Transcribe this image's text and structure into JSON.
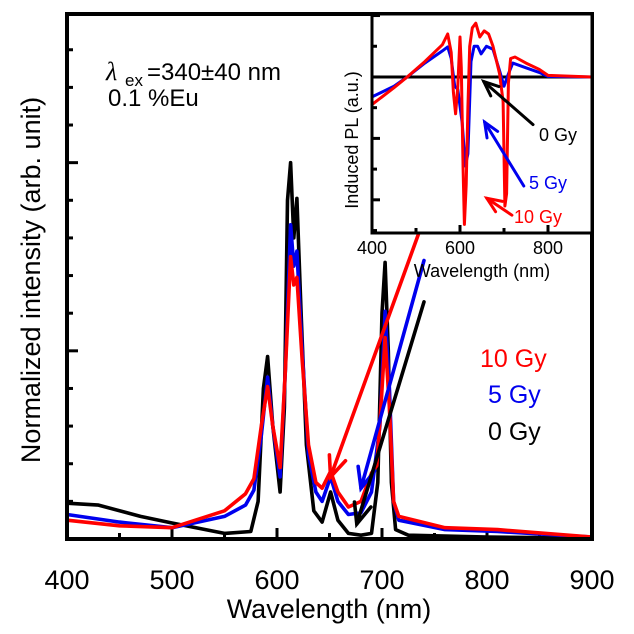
{
  "chart_data": [
    {
      "id": "main",
      "type": "line",
      "title": "",
      "xlabel": "Wavelength (nm)",
      "ylabel": "Normalized intensity (arb. unit)",
      "xlim": [
        400,
        900
      ],
      "ylim": [
        0,
        2.79
      ],
      "xticks": [
        400,
        500,
        600,
        700,
        800,
        900
      ],
      "xtick_labels": [
        "400",
        "500",
        "600",
        "700",
        "800",
        "900"
      ],
      "x_minor_step": 50,
      "y_major_step": 1,
      "y_minor_step": 0.2,
      "y_tick_labels_shown": false,
      "grid": false,
      "annotations": {
        "line1_symbol": "λ",
        "line1_sub": "ex",
        "line1_rest": "=340±40 nm",
        "line2": "0.1 %Eu"
      },
      "series": [
        {
          "name": "0 Gy",
          "label": "0 Gy",
          "color": "#000000",
          "x": [
            400,
            430,
            470,
            500,
            550,
            575,
            582,
            587,
            591,
            596,
            603,
            607,
            610,
            613,
            616,
            619,
            623,
            628,
            635,
            643,
            651,
            658,
            668,
            680,
            690,
            696,
            700,
            703,
            706,
            709,
            713,
            725,
            800,
            900
          ],
          "y": [
            0.19,
            0.18,
            0.12,
            0.085,
            0.03,
            0.04,
            0.2,
            0.8,
            0.97,
            0.6,
            0.25,
            0.7,
            1.8,
            2.0,
            1.6,
            1.81,
            1.2,
            0.5,
            0.15,
            0.09,
            0.25,
            0.1,
            0.03,
            0.02,
            0.03,
            0.3,
            1.2,
            1.47,
            1.0,
            0.3,
            0.05,
            0.02,
            0.01,
            0.005
          ]
        },
        {
          "name": "5 Gy",
          "label": "5 Gy",
          "color": "#0000ee",
          "x": [
            400,
            450,
            500,
            550,
            570,
            578,
            585,
            591,
            596,
            603,
            608,
            613,
            616,
            619,
            624,
            630,
            637,
            643,
            651,
            658,
            668,
            680,
            690,
            698,
            703,
            707,
            711,
            716,
            760,
            810,
            900
          ],
          "y": [
            0.13,
            0.09,
            0.06,
            0.12,
            0.18,
            0.26,
            0.55,
            0.86,
            0.6,
            0.33,
            0.9,
            1.67,
            1.45,
            1.53,
            1.0,
            0.45,
            0.25,
            0.2,
            0.33,
            0.2,
            0.13,
            0.14,
            0.25,
            0.6,
            1.21,
            0.8,
            0.2,
            0.1,
            0.05,
            0.04,
            0.01
          ]
        },
        {
          "name": "10 Gy",
          "label": "10 Gy",
          "color": "#ff0000",
          "x": [
            400,
            450,
            500,
            550,
            570,
            578,
            585,
            591,
            596,
            603,
            608,
            613,
            616,
            619,
            624,
            630,
            637,
            643,
            651,
            658,
            668,
            680,
            690,
            695,
            699,
            703,
            707,
            711,
            716,
            760,
            810,
            900
          ],
          "y": [
            0.1,
            0.07,
            0.06,
            0.15,
            0.24,
            0.32,
            0.6,
            0.81,
            0.6,
            0.38,
            0.9,
            1.5,
            1.35,
            1.39,
            0.95,
            0.5,
            0.3,
            0.27,
            0.36,
            0.25,
            0.17,
            0.2,
            0.35,
            0.39,
            0.7,
            1.07,
            0.7,
            0.2,
            0.12,
            0.06,
            0.05,
            0.01
          ]
        }
      ],
      "arrows": [
        {
          "series": "10 Gy",
          "from": [
            736,
            1.64
          ],
          "to": [
            651,
            0.33
          ]
        },
        {
          "series": "5 Gy",
          "from": [
            740,
            1.48
          ],
          "to": [
            680,
            0.27
          ]
        },
        {
          "series": "0 Gy",
          "from": [
            740,
            1.26
          ],
          "to": [
            676,
            0.08
          ]
        }
      ]
    },
    {
      "id": "inset",
      "type": "line",
      "title": "",
      "xlabel": "Wavelength (nm)",
      "ylabel": "Induced PL (a.u.)",
      "xlim": [
        400,
        900
      ],
      "ylim": [
        -5.08,
        2.05
      ],
      "xticks": [
        400,
        600,
        800
      ],
      "xtick_labels": [
        "400",
        "600",
        "800"
      ],
      "x_minor_step": 100,
      "y_major_step": 2,
      "y_minor_step": 1,
      "y_tick_labels_shown": false,
      "grid": false,
      "series": [
        {
          "name": "0 Gy",
          "label": "0 Gy",
          "color": "#000000",
          "x": [
            400,
            900
          ],
          "y": [
            0,
            0
          ]
        },
        {
          "name": "5 Gy",
          "label": "5 Gy",
          "color": "#0000ee",
          "x": [
            400,
            450,
            480,
            520,
            560,
            572,
            580,
            588,
            595,
            605,
            612,
            618,
            625,
            632,
            640,
            648,
            660,
            675,
            690,
            700,
            710,
            720,
            750,
            780,
            800,
            900
          ],
          "y": [
            -0.65,
            -0.3,
            0,
            0.45,
            0.85,
            0.98,
            0.6,
            -0.3,
            -0.4,
            -1.5,
            -2.9,
            -2.5,
            0.5,
            1.0,
            1.0,
            0.75,
            1.0,
            0.9,
            0.2,
            -0.3,
            0.1,
            0.45,
            0.3,
            0.15,
            0.02,
            0
          ]
        },
        {
          "name": "10 Gy",
          "label": "10 Gy",
          "color": "#ff0000",
          "x": [
            400,
            450,
            480,
            520,
            560,
            572,
            580,
            585,
            590,
            595,
            600,
            603,
            607,
            610,
            614,
            618,
            622,
            628,
            636,
            645,
            655,
            665,
            675,
            690,
            698,
            702,
            706,
            710,
            715,
            725,
            750,
            780,
            800,
            900
          ],
          "y": [
            -0.9,
            -0.35,
            0,
            0.5,
            1.05,
            1.4,
            0.8,
            -0.5,
            -1.2,
            -0.3,
            1.3,
            0.3,
            -3.0,
            -4.8,
            -3.5,
            -1.0,
            1.0,
            1.6,
            1.75,
            1.3,
            1.5,
            1.4,
            1.0,
            0.1,
            -0.8,
            -4.2,
            -3.8,
            -0.2,
            0.6,
            0.65,
            0.45,
            0.25,
            0.05,
            0
          ]
        }
      ],
      "arrows": [
        {
          "series": "0 Gy",
          "from": [
            766,
            -1.55
          ],
          "to": [
            654,
            -0.15
          ]
        },
        {
          "series": "5 Gy",
          "from": [
            745,
            -3.55
          ],
          "to": [
            656,
            -1.47
          ]
        },
        {
          "series": "10 Gy",
          "from": [
            718,
            -4.5
          ],
          "to": [
            661,
            -3.95
          ]
        }
      ]
    }
  ]
}
